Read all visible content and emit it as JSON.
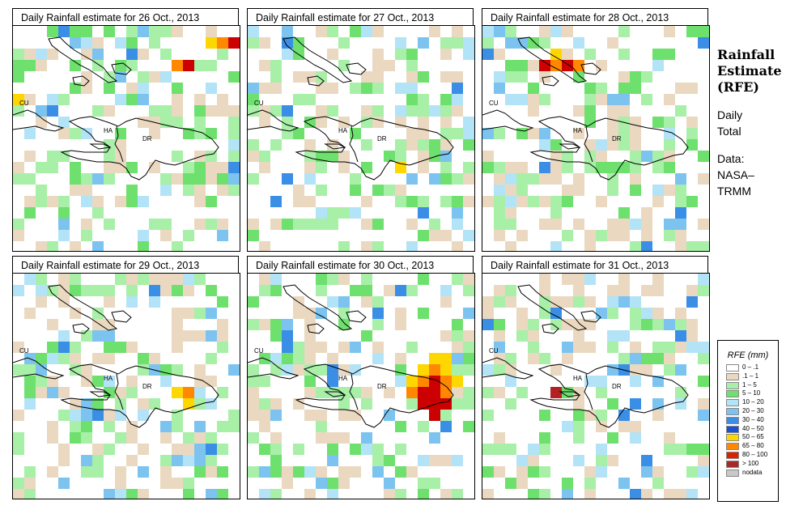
{
  "panels": [
    {
      "title": "Daily Rainfall estimate for  26 Oct., 2013",
      "seed": 11,
      "heavy": [
        [
          15,
          3,
          "#cc0000"
        ],
        [
          14,
          3,
          "#ff8800"
        ],
        [
          17,
          1,
          "#ffd700"
        ],
        [
          18,
          1,
          "#ff8800"
        ],
        [
          19,
          1,
          "#cc0000"
        ],
        [
          0,
          6,
          "#ffd700"
        ]
      ]
    },
    {
      "title": "Daily Rainfall estimate for  27 Oct., 2013",
      "seed": 23,
      "heavy": [
        [
          13,
          12,
          "#ffd700"
        ]
      ]
    },
    {
      "title": "Daily Rainfall estimate for  28 Oct., 2013",
      "seed": 37,
      "heavy": [
        [
          5,
          3,
          "#cc0000"
        ],
        [
          6,
          3,
          "#ff8800"
        ],
        [
          7,
          3,
          "#cc0000"
        ],
        [
          6,
          2,
          "#ffd700"
        ],
        [
          8,
          3,
          "#ff8800"
        ]
      ]
    },
    {
      "title": "Daily Rainfall estimate for  29 Oct., 2013",
      "seed": 41,
      "heavy": [
        [
          14,
          10,
          "#ffd700"
        ],
        [
          15,
          10,
          "#ff8800"
        ],
        [
          15,
          11,
          "#ffd700"
        ]
      ]
    },
    {
      "title": "Daily Rainfall estimate for  30 Oct., 2013",
      "seed": 53,
      "heavy": [
        [
          15,
          8,
          "#ffd700"
        ],
        [
          16,
          8,
          "#ff8800"
        ],
        [
          17,
          8,
          "#ffd700"
        ],
        [
          15,
          9,
          "#ff8800"
        ],
        [
          16,
          9,
          "#cc0000"
        ],
        [
          17,
          9,
          "#ff8800"
        ],
        [
          14,
          9,
          "#ffd700"
        ],
        [
          14,
          10,
          "#ff8800"
        ],
        [
          15,
          10,
          "#cc0000"
        ],
        [
          16,
          10,
          "#cc0000"
        ],
        [
          17,
          10,
          "#ff8800"
        ],
        [
          15,
          11,
          "#cc0000"
        ],
        [
          16,
          11,
          "#cc0000"
        ],
        [
          17,
          11,
          "#cc0000"
        ],
        [
          16,
          12,
          "#cc0000"
        ],
        [
          16,
          7,
          "#ffd700"
        ],
        [
          18,
          9,
          "#ffd700"
        ],
        [
          17,
          7,
          "#ffd700"
        ]
      ]
    },
    {
      "title": "Daily Rainfall estimate for  31 Oct., 2013",
      "seed": 67,
      "heavy": [
        [
          6,
          10,
          "#b22222"
        ]
      ]
    }
  ],
  "map_labels": {
    "cu": "CU",
    "ha": "HA",
    "dr": "DR"
  },
  "side": {
    "title_line1": "Rainfall",
    "title_line2": "Estimate",
    "title_line3": "(RFE)",
    "daily": "Daily",
    "total": "Total",
    "data": "Data:",
    "nasa": "NASA–",
    "trmm": "TRMM"
  },
  "legend": {
    "title": "RFE (mm)",
    "items": [
      {
        "label": "0 – .1",
        "color": "#ffffff"
      },
      {
        "label": ".1 – 1",
        "color": "#ead9c0"
      },
      {
        "label": "1 – 5",
        "color": "#a8efa8"
      },
      {
        "label": "5 – 10",
        "color": "#6ee06e"
      },
      {
        "label": "10 – 20",
        "color": "#b3e3f7"
      },
      {
        "label": "20 – 30",
        "color": "#7cc4ef"
      },
      {
        "label": "30 – 40",
        "color": "#3b8ee6"
      },
      {
        "label": "40 – 50",
        "color": "#1c4fd1"
      },
      {
        "label": "50 – 65",
        "color": "#ffd700"
      },
      {
        "label": "65 – 80",
        "color": "#ff8800"
      },
      {
        "label": "80 – 100",
        "color": "#dd2200"
      },
      {
        "label": "> 100",
        "color": "#a52a2a"
      },
      {
        "label": "nodata",
        "color": "#c8c8c8"
      }
    ]
  }
}
